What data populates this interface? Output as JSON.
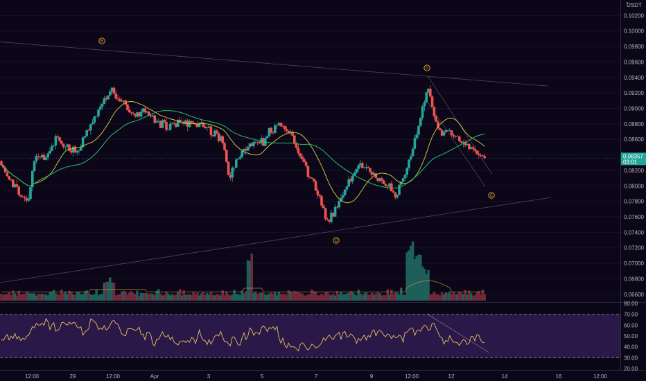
{
  "chart_data": {
    "type": "candlestick",
    "quote_currency": "USDT",
    "price_axis": {
      "ylim": [
        0.065,
        0.104
      ],
      "ticks": [
        "0.10200",
        "0.10000",
        "0.09800",
        "0.09600",
        "0.09400",
        "0.09200",
        "0.09000",
        "0.08800",
        "0.08600",
        "0.08400",
        "0.08200",
        "0.08000",
        "0.07800",
        "0.07600",
        "0.07400",
        "0.07200",
        "0.07000",
        "0.06800",
        "0.06600"
      ]
    },
    "last_price": {
      "value": "0.08357",
      "countdown": "03:01",
      "color": "#26a69a"
    },
    "time_axis": {
      "labels": [
        "12:00",
        "29",
        "12:00",
        "Apr",
        "3",
        "5",
        "7",
        "9",
        "12:00",
        "12",
        "14",
        "16",
        "12:00"
      ]
    },
    "ohlc_series": {
      "count": 250,
      "seed": 7,
      "path": [
        [
          0,
          0.0832
        ],
        [
          10,
          0.0815
        ],
        [
          40,
          0.0777
        ],
        [
          50,
          0.0838
        ],
        [
          65,
          0.0836
        ],
        [
          80,
          0.086
        ],
        [
          110,
          0.0842
        ],
        [
          130,
          0.088
        ],
        [
          160,
          0.0925
        ],
        [
          185,
          0.0898
        ],
        [
          210,
          0.0893
        ],
        [
          240,
          0.0876
        ],
        [
          270,
          0.088
        ],
        [
          300,
          0.0874
        ],
        [
          320,
          0.0862
        ],
        [
          330,
          0.081
        ],
        [
          350,
          0.085
        ],
        [
          380,
          0.0858
        ],
        [
          400,
          0.0882
        ],
        [
          420,
          0.0868
        ],
        [
          440,
          0.0826
        ],
        [
          460,
          0.079
        ],
        [
          472,
          0.075
        ],
        [
          485,
          0.077
        ],
        [
          500,
          0.08
        ],
        [
          520,
          0.0828
        ],
        [
          540,
          0.0815
        ],
        [
          560,
          0.08
        ],
        [
          572,
          0.0787
        ],
        [
          590,
          0.083
        ],
        [
          602,
          0.0875
        ],
        [
          617,
          0.0928
        ],
        [
          632,
          0.0872
        ],
        [
          655,
          0.0866
        ],
        [
          680,
          0.0846
        ],
        [
          700,
          0.0835
        ]
      ],
      "up_color": "#26a69a",
      "down_color": "#ef5350"
    },
    "moving_averages": [
      {
        "color": "#c8c43a"
      },
      {
        "color": "#26c26a"
      }
    ],
    "volume": {
      "ylim": [
        0,
        100
      ]
    },
    "wave_labels": [
      "B",
      "C",
      "D",
      "E"
    ],
    "rsi": {
      "ylim": [
        20,
        80
      ],
      "ticks": [
        "80.00",
        "70.00",
        "60.00",
        "50.00",
        "40.00",
        "30.00",
        "20.00"
      ],
      "upper": 70,
      "lower": 30,
      "line_color": "#e8c35a",
      "band_color": "#2a1848"
    },
    "settings_glyph": "⌃"
  }
}
